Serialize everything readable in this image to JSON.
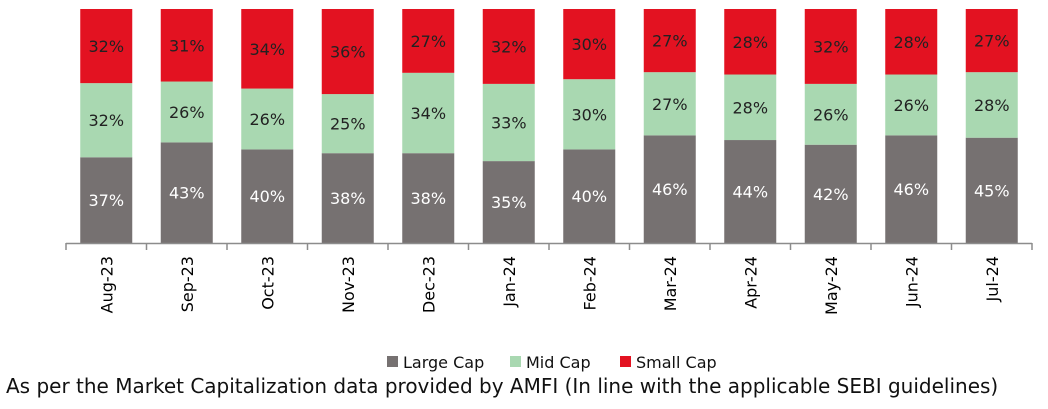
{
  "chart_data": {
    "type": "bar",
    "stacked": true,
    "normalized": true,
    "categories": [
      "Aug-23",
      "Sep-23",
      "Oct-23",
      "Nov-23",
      "Dec-23",
      "Jan-24",
      "Feb-24",
      "Mar-24",
      "Apr-24",
      "May-24",
      "Jun-24",
      "Jul-24"
    ],
    "series": [
      {
        "name": "Large Cap",
        "color": "#767171",
        "values": [
          37,
          43,
          40,
          38,
          38,
          35,
          40,
          46,
          44,
          42,
          46,
          45
        ]
      },
      {
        "name": "Mid Cap",
        "color": "#a9d8b1",
        "values": [
          32,
          26,
          26,
          25,
          34,
          33,
          30,
          27,
          28,
          26,
          26,
          28
        ]
      },
      {
        "name": "Small Cap",
        "color": "#e31221",
        "values": [
          32,
          31,
          34,
          36,
          27,
          32,
          30,
          27,
          28,
          32,
          28,
          27
        ]
      }
    ],
    "value_suffix": "%",
    "legend_position": "bottom",
    "grid": false
  },
  "footnote": "As per the Market Capitalization data provided by AMFI (In line with the applicable SEBI guidelines)"
}
